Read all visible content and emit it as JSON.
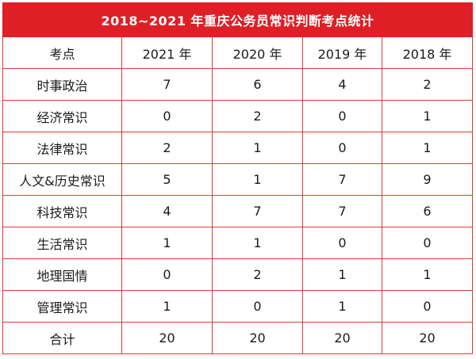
{
  "table": {
    "title": "2018~2021 年重庆公务员常识判断考点统计",
    "headers": [
      "考点",
      "2021 年",
      "2020 年",
      "2019 年",
      "2018 年"
    ],
    "rows": [
      [
        "时事政治",
        "7",
        "6",
        "4",
        "2"
      ],
      [
        "经济常识",
        "0",
        "2",
        "0",
        "1"
      ],
      [
        "法律常识",
        "2",
        "1",
        "0",
        "1"
      ],
      [
        "人文&历史常识",
        "5",
        "1",
        "7",
        "9"
      ],
      [
        "科技常识",
        "4",
        "7",
        "7",
        "6"
      ],
      [
        "生活常识",
        "1",
        "1",
        "0",
        "0"
      ],
      [
        "地理国情",
        "0",
        "2",
        "1",
        "1"
      ],
      [
        "管理常识",
        "1",
        "0",
        "1",
        "0"
      ],
      [
        "合计",
        "20",
        "20",
        "20",
        "20"
      ]
    ]
  },
  "colors": {
    "header_bg": "#de1f26",
    "border": "#e03a3a",
    "header_text": "#ffffff"
  }
}
